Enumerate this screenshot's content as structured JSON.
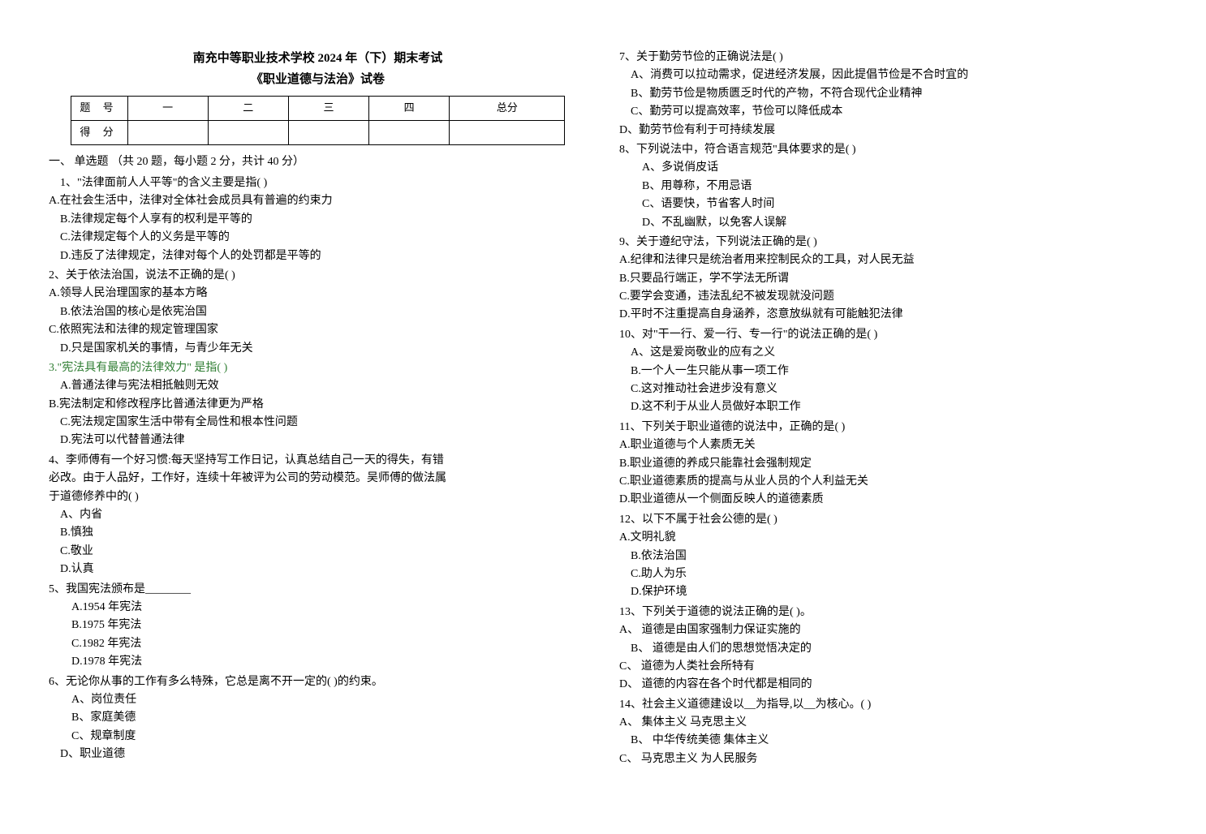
{
  "header": {
    "title": "南充中等职业技术学校 2024 年（下）期末考试",
    "subtitle": "《职业道德与法治》试卷"
  },
  "scoreTable": {
    "row1": {
      "label": "题    号",
      "c1": "一",
      "c2": "二",
      "c3": "三",
      "c4": "四",
      "c5": "总分"
    },
    "row2": {
      "label": "得    分"
    }
  },
  "section1": {
    "header": "一、 单选题 （共 20 题，每小题 2 分，共计 40 分）"
  },
  "q1": {
    "stem": "1、\"法律面前人人平等\"的含义主要是指(    )",
    "a": "A.在社会生活中，法律对全体社会成员具有普遍的约束力",
    "b": "B.法律规定每个人享有的权利是平等的",
    "c": "C.法律规定每个人的义务是平等的",
    "d": "D.违反了法律规定，法律对每个人的处罚都是平等的"
  },
  "q2": {
    "stem": "2、关于依法治国，说法不正确的是(    )",
    "a": "A.领导人民治理国家的基本方略",
    "b": "B.依法治国的核心是依宪治国",
    "c": "C.依照宪法和法律的规定管理国家",
    "d": "D.只是国家机关的事情，与青少年无关"
  },
  "q3": {
    "stem": "3.\"宪法具有最高的法律效力\"  是指(    )",
    "a": "A.普通法律与宪法相抵触则无效",
    "b": "B.宪法制定和修改程序比普通法律更为严格",
    "c": "C.宪法规定国家生活中带有全局性和根本性问题",
    "d": "D.宪法可以代替普通法律"
  },
  "q4": {
    "stem1": "4、李师傅有一个好习惯:每天坚持写工作日记，认真总结自己一天的得失，有错",
    "stem2": "必改。由于人品好，工作好，连续十年被评为公司的劳动模范。吴师傅的做法属",
    "stem3": "于道德修养中的(    )",
    "a": "A、内省",
    "b": "B.慎独",
    "c": "C.敬业",
    "d": "D.认真"
  },
  "q5": {
    "stem": "5、我国宪法颁布是________",
    "a": "A.1954 年宪法",
    "b": "B.1975 年宪法",
    "c": "C.1982 年宪法",
    "d": "D.1978 年宪法"
  },
  "q6": {
    "stem": "6、无论你从事的工作有多么特殊，它总是离不开一定的(      )的约束。",
    "a": "A、岗位责任",
    "b": "B、家庭美德",
    "c": "C、规章制度",
    "d": "D、职业道德"
  },
  "q7": {
    "stem": "7、关于勤劳节俭的正确说法是(    )",
    "a": "A、消费可以拉动需求，促进经济发展，因此提倡节俭是不合时宜的",
    "b": "B、勤劳节俭是物质匮乏时代的产物，不符合现代企业精神",
    "c": "C、勤劳可以提高效率，节俭可以降低成本",
    "d": "D、勤劳节俭有利于可持续发展"
  },
  "q8": {
    "stem": "8、下列说法中，符合语言规范\"具体要求的是(    )",
    "a": "A、多说俏皮话",
    "b": "B、用尊称，不用忌语",
    "c": "C、语要快，节省客人时间",
    "d": "D、不乱幽默，以免客人误解"
  },
  "q9": {
    "stem": "9、关于遵纪守法，下列说法正确的是(     )",
    "a": "A.纪律和法律只是统治者用来控制民众的工具，对人民无益",
    "b": "B.只要品行端正，学不学法无所谓",
    "c": "C.要学会变通，违法乱纪不被发现就没问题",
    "d": "D.平时不注重提高自身涵养，恣意放纵就有可能触犯法律"
  },
  "q10": {
    "stem": "10、对\"干一行、爱一行、专一行\"的说法正确的是(    )",
    "a": "A、这是爱岗敬业的应有之义",
    "b": "B.一个人一生只能从事一项工作",
    "c": "C.这对推动社会进步没有意义",
    "d": "D.这不利于从业人员做好本职工作"
  },
  "q11": {
    "stem": "11、下列关于职业道德的说法中，正确的是(    )",
    "a": "A.职业道德与个人素质无关",
    "b": "B.职业道德的养成只能靠社会强制规定",
    "c": "C.职业道德素质的提高与从业人员的个人利益无关",
    "d": "D.职业道德从一个侧面反映人的道德素质"
  },
  "q12": {
    "stem": "12、以下不属于社会公德的是(     )",
    "a": "A.文明礼貌",
    "b": "B.依法治国",
    "c": "C.助人为乐",
    "d": "D.保护环境"
  },
  "q13": {
    "stem": "13、下列关于道德的说法正确的是( )。",
    "a": "A、 道德是由国家强制力保证实施的",
    "b": "B、  道德是由人们的思想觉悟决定的",
    "c": "C、 道德为人类社会所特有",
    "d": "D、 道德的内容在各个时代都是相同的"
  },
  "q14": {
    "stem": "14、社会主义道德建设以__为指导,以__为核心。( )",
    "a": "A、 集体主义 马克思主义",
    "b": "B、  中华传统美德 集体主义",
    "c": "C、 马克思主义 为人民服务"
  }
}
